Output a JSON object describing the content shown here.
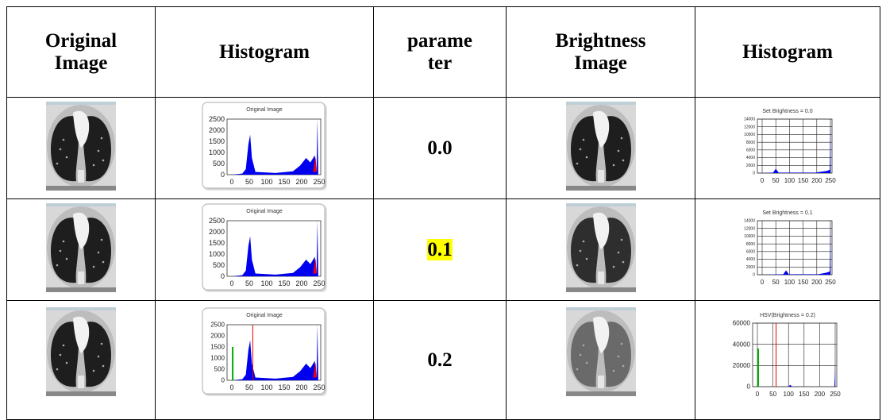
{
  "table": {
    "header": [
      "Original Image",
      "Histogram",
      "parameter",
      "Brightness Image",
      "Histogram"
    ],
    "rows": [
      {
        "parameter": "0.0",
        "highlight": false,
        "original_hist": {
          "title": "Original Image",
          "yticks": [
            "2500",
            "2000",
            "1500",
            "1000",
            "500",
            "0"
          ],
          "xticks": [
            "0",
            "50",
            "100",
            "150",
            "200",
            "250"
          ]
        },
        "brightness_hist": {
          "title": "Set Brightness = 0.0",
          "yticks": [
            "14000",
            "12000",
            "10000",
            "8000",
            "6000",
            "4000",
            "2000",
            "0"
          ],
          "xticks": [
            "0",
            "50",
            "100",
            "150",
            "200",
            "250"
          ]
        }
      },
      {
        "parameter": "0.1",
        "highlight": true,
        "original_hist": {
          "title": "Original Image",
          "yticks": [
            "2500",
            "2000",
            "1500",
            "1000",
            "500",
            "0"
          ],
          "xticks": [
            "0",
            "50",
            "100",
            "150",
            "200",
            "250"
          ]
        },
        "brightness_hist": {
          "title": "Set Brightness = 0.1",
          "yticks": [
            "14000",
            "12000",
            "10000",
            "8000",
            "6000",
            "4000",
            "2000",
            "0"
          ],
          "xticks": [
            "0",
            "50",
            "100",
            "150",
            "200",
            "250"
          ]
        }
      },
      {
        "parameter": "0.2",
        "highlight": false,
        "original_hist": {
          "title": "Original Image",
          "yticks": [
            "2500",
            "2000",
            "1500",
            "1000",
            "500",
            "0"
          ],
          "xticks": [
            "0",
            "50",
            "100",
            "150",
            "200",
            "250"
          ]
        },
        "brightness_hist": {
          "title": "HSV(Brightness = 0.2)",
          "yticks": [
            "60000",
            "40000",
            "20000",
            "0"
          ],
          "xticks": [
            "0",
            "50",
            "100",
            "150",
            "200",
            "250"
          ]
        }
      }
    ]
  }
}
